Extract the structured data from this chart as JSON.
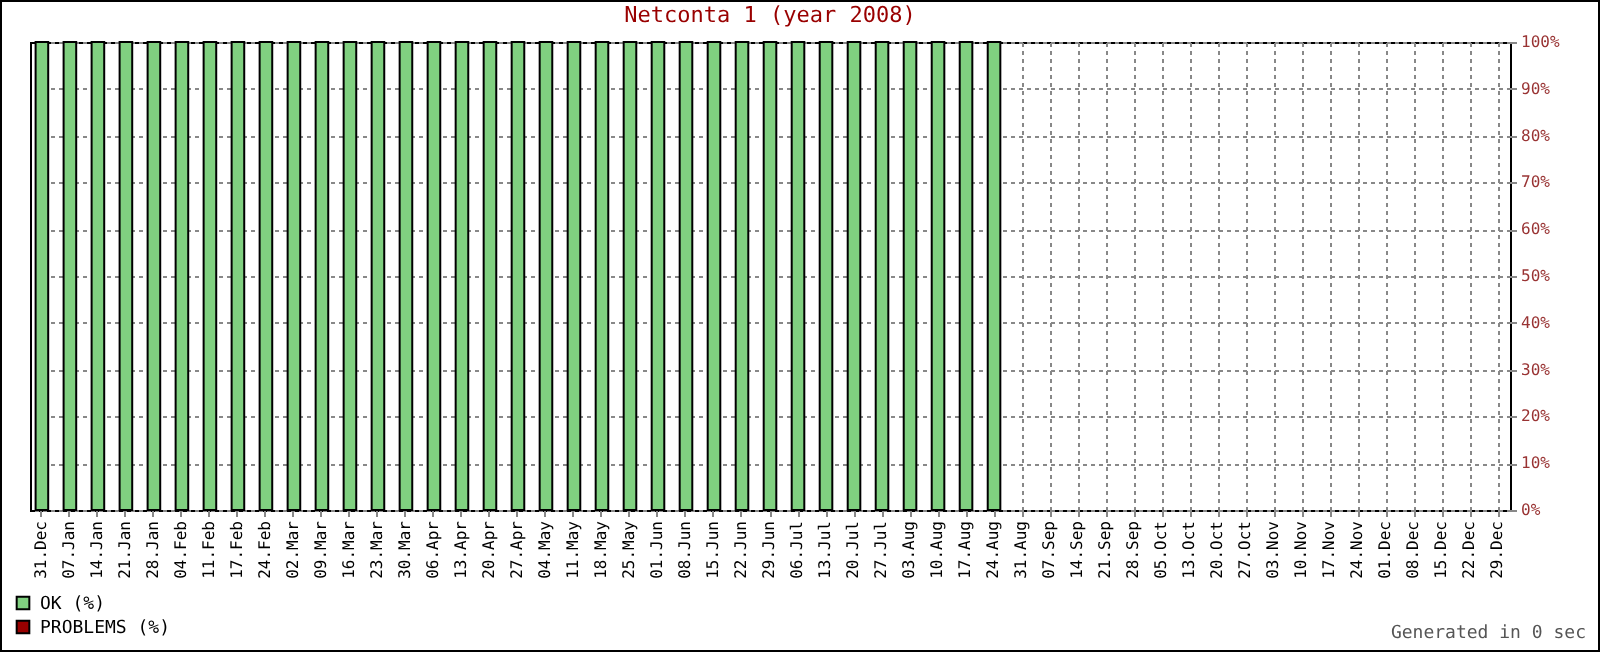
{
  "chart_data": {
    "type": "bar",
    "title": "Netconta 1 (year 2008)",
    "categories": [
      "31.Dec",
      "07.Jan",
      "14.Jan",
      "21.Jan",
      "28.Jan",
      "04.Feb",
      "11.Feb",
      "17.Feb",
      "24.Feb",
      "02.Mar",
      "09.Mar",
      "16.Mar",
      "23.Mar",
      "30.Mar",
      "06.Apr",
      "13.Apr",
      "20.Apr",
      "27.Apr",
      "04.May",
      "11.May",
      "18.May",
      "25.May",
      "01.Jun",
      "08.Jun",
      "15.Jun",
      "22.Jun",
      "29.Jun",
      "06.Jul",
      "13.Jul",
      "20.Jul",
      "27.Jul",
      "03.Aug",
      "10.Aug",
      "17.Aug",
      "24.Aug",
      "31.Aug",
      "07.Sep",
      "14.Sep",
      "21.Sep",
      "28.Sep",
      "05.Oct",
      "13.Oct",
      "20.Oct",
      "27.Oct",
      "03.Nov",
      "10.Nov",
      "17.Nov",
      "24.Nov",
      "01.Dec",
      "08.Dec",
      "15.Dec",
      "22.Dec",
      "29.Dec"
    ],
    "series": [
      {
        "name": "OK (%)",
        "color": "#80d080",
        "values": [
          100,
          100,
          100,
          100,
          100,
          100,
          100,
          100,
          100,
          100,
          100,
          100,
          100,
          100,
          100,
          100,
          100,
          100,
          100,
          100,
          100,
          100,
          100,
          100,
          100,
          100,
          100,
          100,
          100,
          100,
          100,
          100,
          100,
          100,
          100,
          null,
          null,
          null,
          null,
          null,
          null,
          null,
          null,
          null,
          null,
          null,
          null,
          null,
          null,
          null,
          null,
          null,
          null
        ]
      },
      {
        "name": "PROBLEMS (%)",
        "color": "#990000",
        "values": [
          null,
          null,
          null,
          null,
          null,
          null,
          null,
          null,
          null,
          null,
          null,
          null,
          null,
          null,
          null,
          null,
          null,
          null,
          null,
          null,
          null,
          null,
          null,
          null,
          null,
          null,
          null,
          null,
          null,
          null,
          null,
          null,
          null,
          null,
          null,
          null,
          null,
          null,
          null,
          null,
          null,
          null,
          null,
          null,
          null,
          null,
          null,
          null,
          null,
          null,
          null,
          null,
          null
        ]
      }
    ],
    "ylim": [
      0,
      100
    ],
    "yticks": [
      {
        "value": 0,
        "label": "0%"
      },
      {
        "value": 10,
        "label": "10%"
      },
      {
        "value": 20,
        "label": "20%"
      },
      {
        "value": 30,
        "label": "30%"
      },
      {
        "value": 40,
        "label": "40%"
      },
      {
        "value": 50,
        "label": "50%"
      },
      {
        "value": 60,
        "label": "60%"
      },
      {
        "value": 70,
        "label": "70%"
      },
      {
        "value": 80,
        "label": "80%"
      },
      {
        "value": 90,
        "label": "90%"
      },
      {
        "value": 100,
        "label": "100%"
      }
    ],
    "grid": true,
    "legend": "bottom left",
    "annotations": [
      "Generated in 0 sec"
    ]
  }
}
